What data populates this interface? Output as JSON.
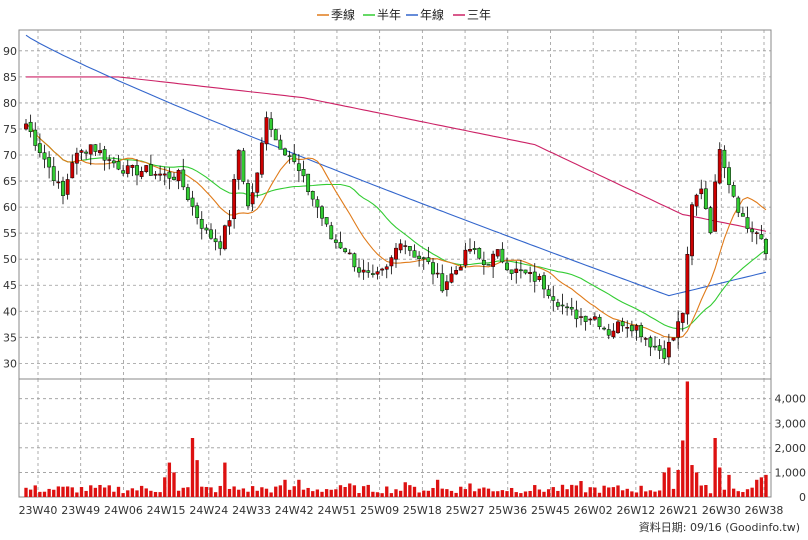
{
  "chart_data": {
    "type": "candlestick",
    "legend": [
      {
        "name": "季線",
        "color": "#e07b1a"
      },
      {
        "name": "半年",
        "color": "#33cc33"
      },
      {
        "name": "年線",
        "color": "#3366cc"
      },
      {
        "name": "三年",
        "color": "#cc2266"
      }
    ],
    "price_axis": {
      "min": 27,
      "max": 94,
      "ticks": [
        30,
        35,
        40,
        45,
        50,
        55,
        60,
        65,
        70,
        75,
        80,
        85,
        90
      ]
    },
    "volume_axis": {
      "min": 0,
      "max": 4800,
      "ticks": [
        0,
        1000,
        2000,
        3000,
        4000
      ],
      "tick_labels": [
        "0",
        "1,000",
        "2,000",
        "3,000",
        "4,000"
      ]
    },
    "x_labels": [
      "23W40",
      "23W49",
      "24W06",
      "24W15",
      "24W24",
      "24W33",
      "24W42",
      "24W51",
      "25W09",
      "25W18",
      "25W27",
      "25W36",
      "25W45",
      "26W02",
      "26W12",
      "26W21",
      "26W30",
      "26W38"
    ],
    "footer": "資料日期: 09/16  (Goodinfo.tw)",
    "colors": {
      "up": "#cc0000",
      "down": "#33cc33",
      "volume": "#dd1111",
      "grid": "#999999",
      "plot_bg": "#ffffff"
    },
    "keypoints": [
      [
        0,
        76
      ],
      [
        3,
        71
      ],
      [
        6,
        66
      ],
      [
        8,
        62
      ],
      [
        10,
        69
      ],
      [
        14,
        72
      ],
      [
        18,
        69
      ],
      [
        22,
        67
      ],
      [
        26,
        67
      ],
      [
        30,
        66
      ],
      [
        33,
        66
      ],
      [
        36,
        60
      ],
      [
        39,
        55
      ],
      [
        42,
        53
      ],
      [
        44,
        58
      ],
      [
        46,
        71
      ],
      [
        48,
        60
      ],
      [
        50,
        66
      ],
      [
        52,
        78
      ],
      [
        54,
        73
      ],
      [
        57,
        70
      ],
      [
        60,
        65
      ],
      [
        63,
        60
      ],
      [
        66,
        54
      ],
      [
        69,
        52
      ],
      [
        72,
        48
      ],
      [
        75,
        46
      ],
      [
        78,
        48
      ],
      [
        81,
        54
      ],
      [
        84,
        51
      ],
      [
        87,
        49
      ],
      [
        90,
        45
      ],
      [
        93,
        48
      ],
      [
        96,
        52
      ],
      [
        99,
        49
      ],
      [
        102,
        51
      ],
      [
        105,
        48
      ],
      [
        108,
        47
      ],
      [
        111,
        46
      ],
      [
        114,
        43
      ],
      [
        117,
        40
      ],
      [
        120,
        39
      ],
      [
        123,
        39
      ],
      [
        126,
        36
      ],
      [
        129,
        38
      ],
      [
        132,
        37
      ],
      [
        135,
        34
      ],
      [
        138,
        32
      ],
      [
        140,
        35
      ],
      [
        142,
        40
      ],
      [
        144,
        60
      ],
      [
        146,
        64
      ],
      [
        148,
        56
      ],
      [
        150,
        72
      ],
      [
        152,
        65
      ],
      [
        154,
        60
      ],
      [
        156,
        56
      ],
      [
        158,
        55
      ],
      [
        160,
        51
      ]
    ],
    "volume_spikes": {
      "30": 800,
      "31": 1400,
      "32": 1000,
      "36": 2400,
      "37": 1500,
      "43": 1400,
      "56": 700,
      "59": 700,
      "70": 550,
      "82": 600,
      "89": 700,
      "96": 550,
      "120": 650,
      "138": 1000,
      "139": 1200,
      "141": 1100,
      "142": 2300,
      "143": 4700,
      "144": 1300,
      "145": 1000,
      "149": 2400,
      "150": 1200,
      "152": 900,
      "158": 700,
      "159": 800,
      "160": 900
    }
  }
}
